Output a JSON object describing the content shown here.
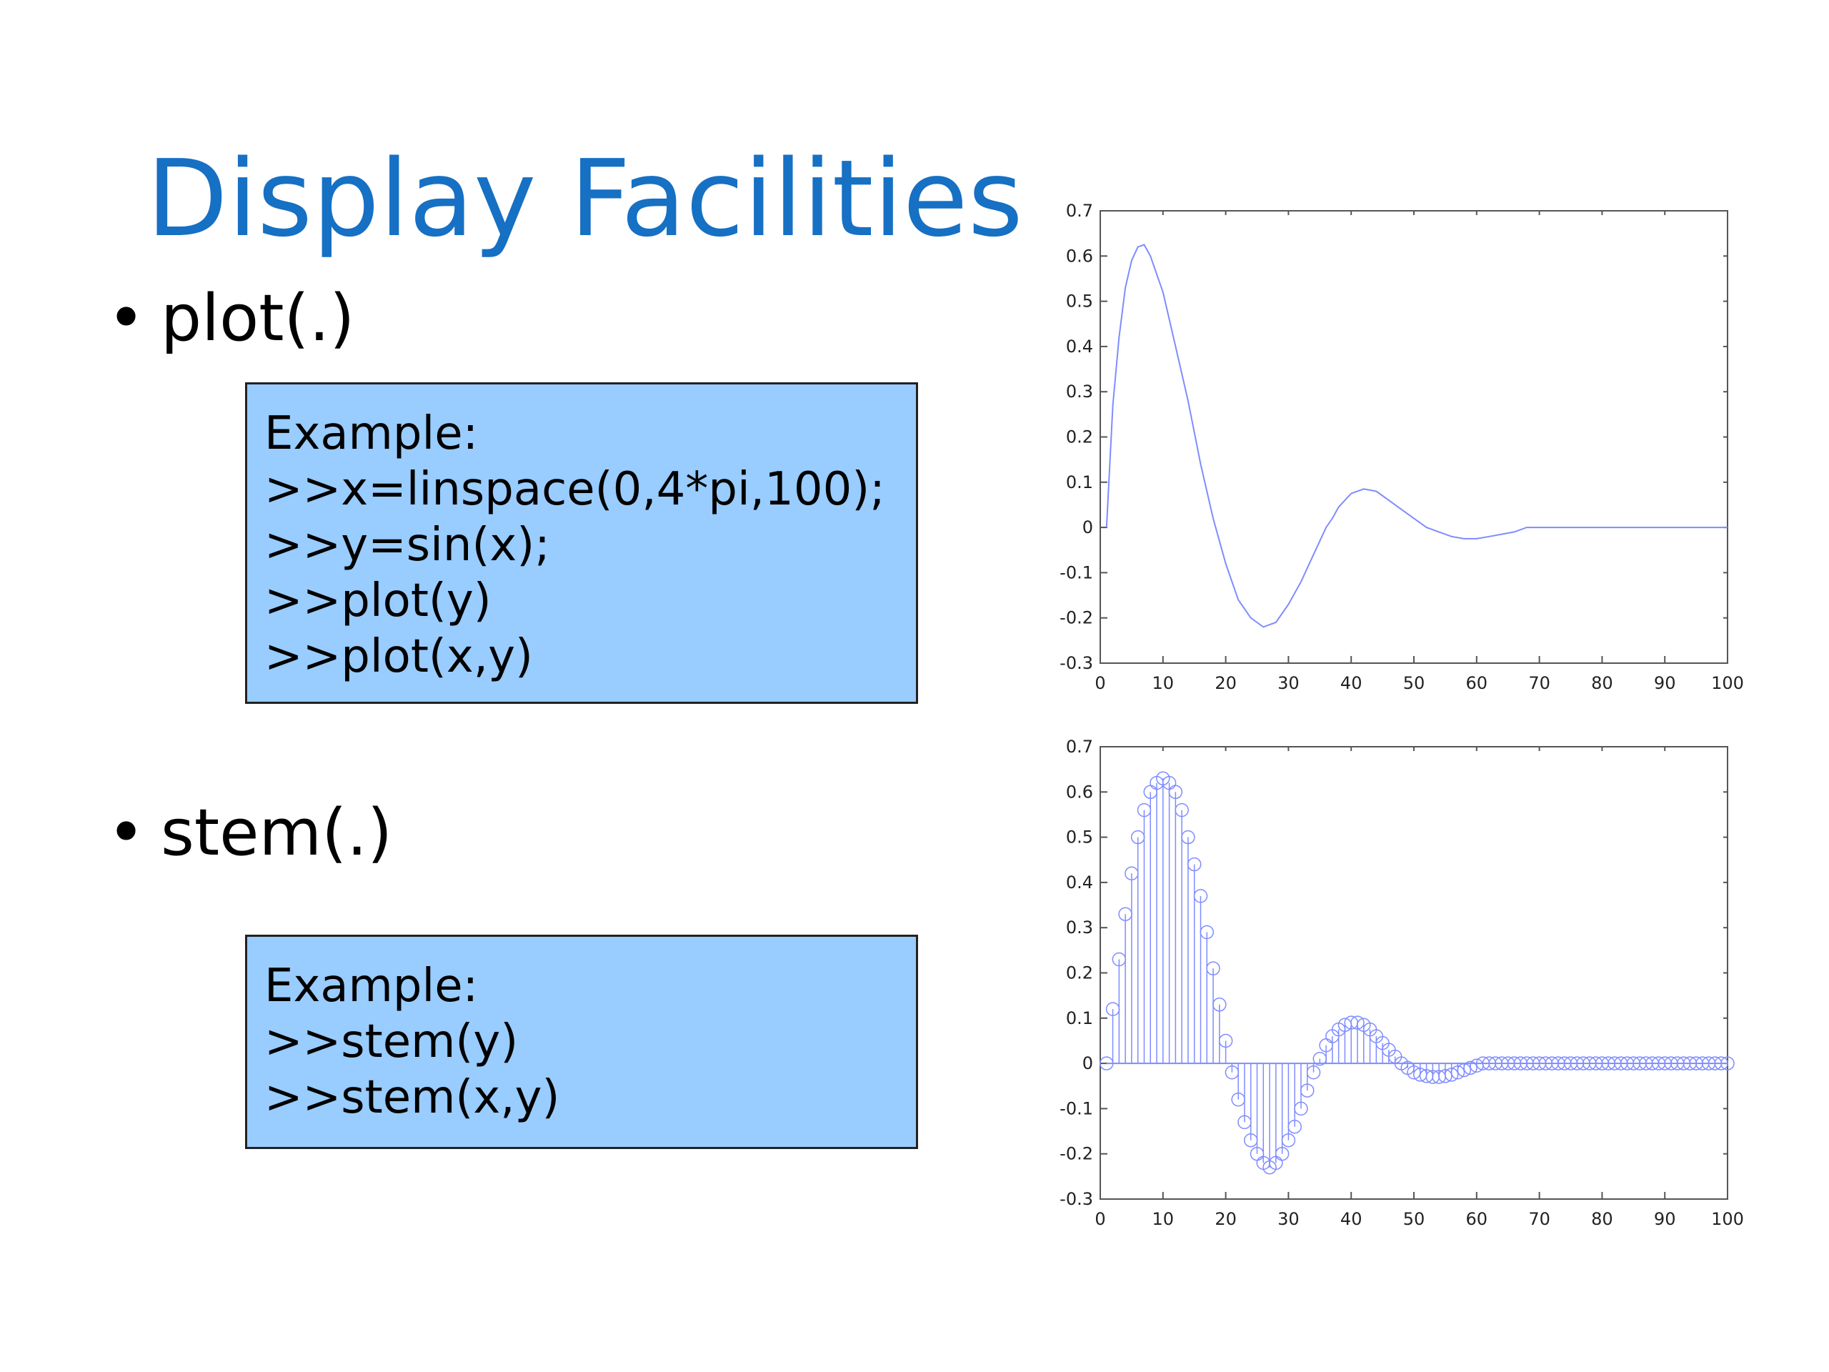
{
  "slide": {
    "title": "Display Facilities",
    "bullets": [
      {
        "text": "plot(.)"
      },
      {
        "text": "stem(.)"
      }
    ],
    "plot_example": {
      "lines": [
        "Example:",
        ">>x=linspace(0,4*pi,100);",
        ">>y=sin(x);",
        ">>plot(y)",
        ">>plot(x,y)"
      ]
    },
    "stem_example": {
      "lines": [
        "Example:",
        ">>stem(y)",
        ">>stem(x,y)"
      ]
    },
    "colors": {
      "title": "#1670c4",
      "box": "#99ccff",
      "series": "#7f8cff"
    }
  },
  "chart_data": [
    {
      "type": "line",
      "title": "",
      "xlabel": "",
      "ylabel": "",
      "x": [
        1,
        2,
        3,
        4,
        5,
        6,
        7,
        8,
        10,
        11,
        12,
        14,
        16,
        18,
        20,
        22,
        24,
        26,
        28,
        30,
        32,
        34,
        35,
        36,
        37,
        38,
        40,
        42,
        44,
        46,
        48,
        50,
        52,
        54,
        56,
        58,
        60,
        62,
        64,
        66,
        68,
        70,
        72,
        74,
        76,
        78,
        80,
        82,
        84,
        86,
        88,
        90,
        92,
        94,
        96,
        98,
        100
      ],
      "y": [
        0.0,
        0.27,
        0.42,
        0.53,
        0.59,
        0.62,
        0.625,
        0.6,
        0.52,
        0.46,
        0.4,
        0.28,
        0.14,
        0.02,
        -0.08,
        -0.16,
        -0.2,
        -0.22,
        -0.21,
        -0.17,
        -0.12,
        -0.06,
        -0.03,
        0.0,
        0.02,
        0.045,
        0.075,
        0.085,
        0.08,
        0.06,
        0.04,
        0.02,
        0.0,
        -0.01,
        -0.02,
        -0.025,
        -0.025,
        -0.02,
        -0.015,
        -0.01,
        0.0,
        0.0,
        0.0,
        0.0,
        0.0,
        0.0,
        0.0,
        0.0,
        0.0,
        0.0,
        0.0,
        0.0,
        0.0,
        0.0,
        0.0,
        0.0,
        0.0
      ],
      "xlim": [
        0,
        100
      ],
      "ylim": [
        -0.3,
        0.7
      ],
      "xticks": [
        "0",
        "10",
        "20",
        "30",
        "40",
        "50",
        "60",
        "70",
        "80",
        "90",
        "100"
      ],
      "yticks": [
        "-0.3",
        "-0.2",
        "-0.1",
        "0",
        "0.1",
        "0.2",
        "0.3",
        "0.4",
        "0.5",
        "0.6",
        "0.7"
      ]
    },
    {
      "type": "stem",
      "title": "",
      "xlabel": "",
      "ylabel": "",
      "x": [
        1,
        2,
        3,
        4,
        5,
        6,
        7,
        8,
        9,
        10,
        11,
        12,
        13,
        14,
        15,
        16,
        17,
        18,
        19,
        20,
        21,
        22,
        23,
        24,
        25,
        26,
        27,
        28,
        29,
        30,
        31,
        32,
        33,
        34,
        35,
        36,
        37,
        38,
        39,
        40,
        41,
        42,
        43,
        44,
        45,
        46,
        47,
        48,
        49,
        50,
        51,
        52,
        53,
        54,
        55,
        56,
        57,
        58,
        59,
        60,
        61,
        62,
        63,
        64,
        65,
        66,
        67,
        68,
        69,
        70,
        71,
        72,
        73,
        74,
        75,
        76,
        77,
        78,
        79,
        80,
        81,
        82,
        83,
        84,
        85,
        86,
        87,
        88,
        89,
        90,
        91,
        92,
        93,
        94,
        95,
        96,
        97,
        98,
        99,
        100
      ],
      "y": [
        0.0,
        0.12,
        0.23,
        0.33,
        0.42,
        0.5,
        0.56,
        0.6,
        0.62,
        0.63,
        0.62,
        0.6,
        0.56,
        0.5,
        0.44,
        0.37,
        0.29,
        0.21,
        0.13,
        0.05,
        -0.02,
        -0.08,
        -0.13,
        -0.17,
        -0.2,
        -0.22,
        -0.23,
        -0.22,
        -0.2,
        -0.17,
        -0.14,
        -0.1,
        -0.06,
        -0.02,
        0.01,
        0.04,
        0.06,
        0.075,
        0.085,
        0.09,
        0.09,
        0.085,
        0.075,
        0.06,
        0.045,
        0.03,
        0.015,
        0.0,
        -0.01,
        -0.02,
        -0.025,
        -0.028,
        -0.03,
        -0.03,
        -0.028,
        -0.025,
        -0.02,
        -0.015,
        -0.01,
        -0.005,
        0.0,
        0.0,
        0.0,
        0.0,
        0.0,
        0.0,
        0.0,
        0.0,
        0.0,
        0.0,
        0.0,
        0.0,
        0.0,
        0.0,
        0.0,
        0.0,
        0.0,
        0.0,
        0.0,
        0.0,
        0.0,
        0.0,
        0.0,
        0.0,
        0.0,
        0.0,
        0.0,
        0.0,
        0.0,
        0.0,
        0.0,
        0.0,
        0.0,
        0.0,
        0.0,
        0.0,
        0.0,
        0.0,
        0.0,
        0.0
      ],
      "xlim": [
        0,
        100
      ],
      "ylim": [
        -0.3,
        0.7
      ],
      "xticks": [
        "0",
        "10",
        "20",
        "30",
        "40",
        "50",
        "60",
        "70",
        "80",
        "90",
        "100"
      ],
      "yticks": [
        "-0.3",
        "-0.2",
        "-0.1",
        "0",
        "0.1",
        "0.2",
        "0.3",
        "0.4",
        "0.5",
        "0.6",
        "0.7"
      ]
    }
  ]
}
